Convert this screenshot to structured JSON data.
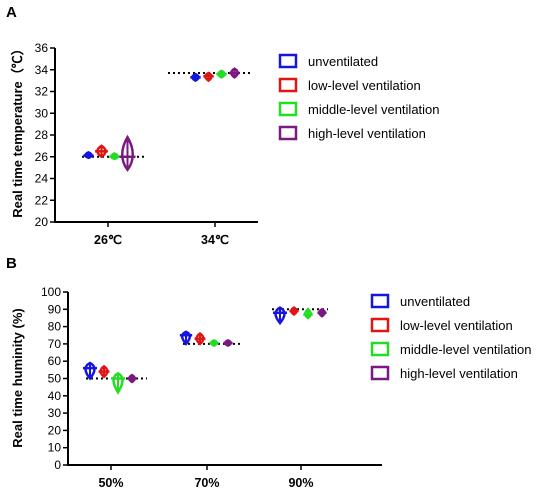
{
  "chart_data": [
    {
      "panel_label": "A",
      "type": "violin",
      "ylabel": "Real time temperature（℃）",
      "ylim": [
        20,
        36
      ],
      "yticks": [
        20,
        22,
        24,
        26,
        28,
        30,
        32,
        34,
        36
      ],
      "categories": [
        "26℃",
        "34℃"
      ],
      "reference_values": [
        26,
        33.7
      ],
      "legend_position": "right",
      "series": [
        {
          "name": "unventilated",
          "color": "#1515e0",
          "values": [
            [
              25.9,
              26.1,
              26.4
            ],
            [
              33.0,
              33.3,
              33.6
            ]
          ]
        },
        {
          "name": "low-level ventilation",
          "color": "#e01515",
          "values": [
            [
              26.0,
              26.5,
              27.0
            ],
            [
              33.0,
              33.4,
              33.7
            ]
          ]
        },
        {
          "name": "middle-level ventilation",
          "color": "#22dd22",
          "values": [
            [
              25.8,
              26.0,
              26.3
            ],
            [
              33.3,
              33.6,
              33.9
            ]
          ]
        },
        {
          "name": "high-level ventilation",
          "color": "#7a1a80",
          "values": [
            [
              24.8,
              26.0,
              27.8
            ],
            [
              33.3,
              33.7,
              34.1
            ]
          ]
        }
      ]
    },
    {
      "panel_label": "B",
      "type": "violin",
      "ylabel": "Real time huminity (%)",
      "ylim": [
        0,
        100
      ],
      "yticks": [
        0,
        10,
        20,
        30,
        40,
        50,
        60,
        70,
        80,
        90,
        100
      ],
      "categories": [
        "50%",
        "70%",
        "90%"
      ],
      "reference_values": [
        50,
        70,
        90
      ],
      "legend_position": "right",
      "series": [
        {
          "name": "unventilated",
          "color": "#1515e0",
          "values": [
            [
              50,
              56,
              59
            ],
            [
              70,
              75,
              77
            ],
            [
              82,
              88,
              91
            ]
          ]
        },
        {
          "name": "low-level ventilation",
          "color": "#e01515",
          "values": [
            [
              51,
              54,
              57
            ],
            [
              70,
              73,
              76
            ],
            [
              87,
              89,
              91
            ]
          ]
        },
        {
          "name": "middle-level ventilation",
          "color": "#22dd22",
          "values": [
            [
              42,
              50,
              53
            ],
            [
              69,
              70.5,
              72
            ],
            [
              85,
              87,
              90
            ]
          ]
        },
        {
          "name": "high-level ventilation",
          "color": "#7a1a80",
          "values": [
            [
              48,
              50,
              52
            ],
            [
              69,
              70.5,
              72
            ],
            [
              86,
              88,
              90
            ]
          ]
        }
      ]
    }
  ]
}
